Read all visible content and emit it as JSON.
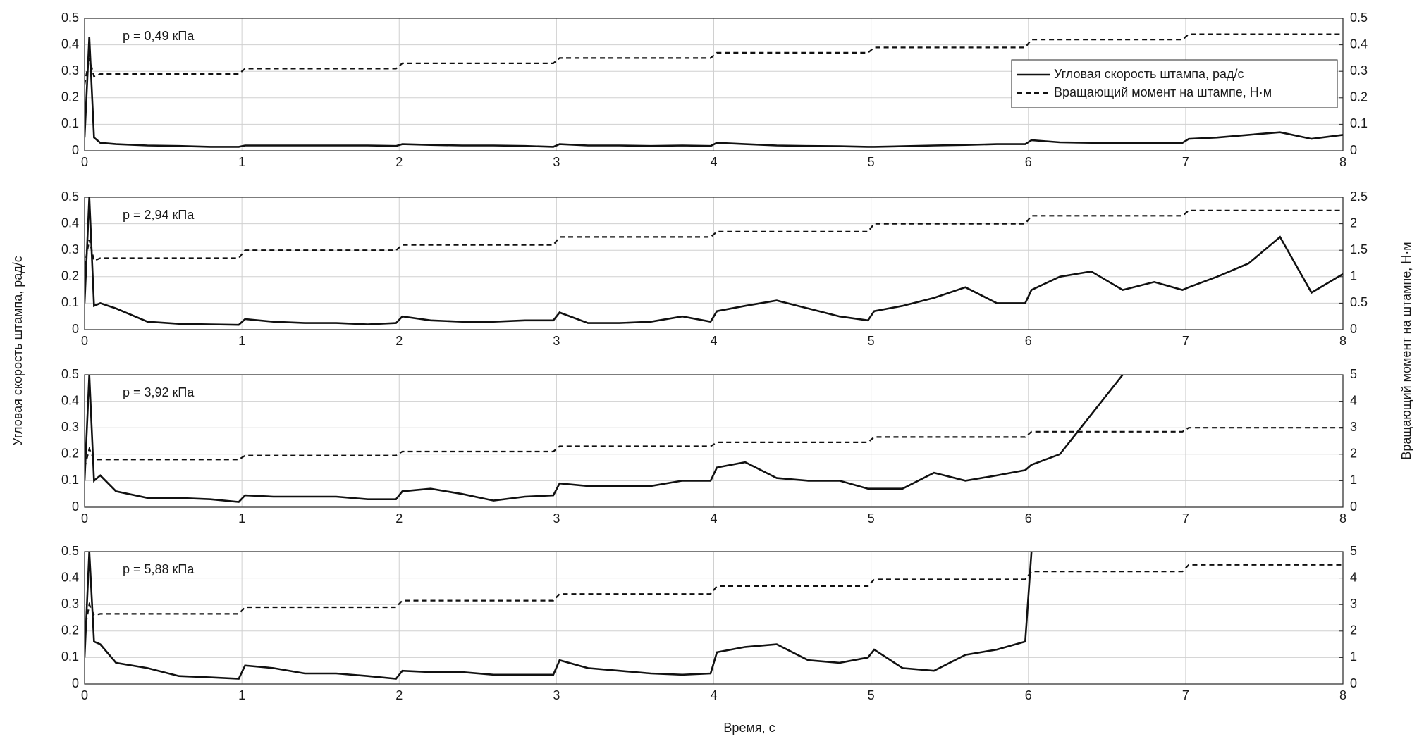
{
  "figure": {
    "xlabel": "Время, с",
    "ylabel": "Угловая скорость штампа, рад/с",
    "y2label": "Вращающий момент на штампе, Н·м"
  },
  "chart_data": [
    {
      "type": "line",
      "annotation": "p = 0,49 кПа",
      "grid": true,
      "legend": "upper right",
      "x": [
        0,
        0.03,
        0.06,
        0.1,
        0.2,
        0.4,
        0.6,
        0.8,
        0.98,
        1.02,
        1.2,
        1.4,
        1.6,
        1.8,
        1.98,
        2.02,
        2.2,
        2.4,
        2.6,
        2.8,
        2.98,
        3.02,
        3.2,
        3.4,
        3.6,
        3.8,
        3.98,
        4.02,
        4.2,
        4.4,
        4.6,
        4.8,
        4.98,
        5.02,
        5.2,
        5.4,
        5.6,
        5.8,
        5.98,
        6.02,
        6.2,
        6.4,
        6.6,
        6.8,
        6.98,
        7.02,
        7.2,
        7.4,
        7.6,
        7.8,
        8
      ],
      "xlim": [
        0,
        8
      ],
      "xticks": [
        0,
        1,
        2,
        3,
        4,
        5,
        6,
        7,
        8
      ],
      "ylim": [
        0,
        0.5
      ],
      "yticks": [
        0,
        0.1,
        0.2,
        0.3,
        0.4,
        0.5
      ],
      "y2lim": [
        0,
        0.5
      ],
      "y2ticks": [
        0,
        0.1,
        0.2,
        0.3,
        0.4,
        0.5
      ],
      "series": [
        {
          "name": "Угловая скорость штампа, рад/с",
          "color": "#111111",
          "linestyle": "solid",
          "values": [
            0.05,
            0.43,
            0.05,
            0.03,
            0.025,
            0.02,
            0.018,
            0.015,
            0.015,
            0.02,
            0.02,
            0.02,
            0.02,
            0.02,
            0.018,
            0.025,
            0.022,
            0.02,
            0.02,
            0.018,
            0.015,
            0.025,
            0.02,
            0.02,
            0.018,
            0.02,
            0.018,
            0.03,
            0.025,
            0.02,
            0.018,
            0.017,
            0.015,
            0.015,
            0.017,
            0.02,
            0.022,
            0.025,
            0.025,
            0.04,
            0.032,
            0.03,
            0.03,
            0.03,
            0.03,
            0.045,
            0.05,
            0.06,
            0.07,
            0.045,
            0.06
          ]
        },
        {
          "name": "Вращающий момент на штампе, Н·м",
          "color": "#111111",
          "linestyle": "dashed",
          "axis": "y2",
          "values": [
            0.25,
            0.35,
            0.28,
            0.29,
            0.29,
            0.29,
            0.29,
            0.29,
            0.29,
            0.31,
            0.31,
            0.31,
            0.31,
            0.31,
            0.31,
            0.33,
            0.33,
            0.33,
            0.33,
            0.33,
            0.33,
            0.35,
            0.35,
            0.35,
            0.35,
            0.35,
            0.35,
            0.37,
            0.37,
            0.37,
            0.37,
            0.37,
            0.37,
            0.39,
            0.39,
            0.39,
            0.39,
            0.39,
            0.39,
            0.42,
            0.42,
            0.42,
            0.42,
            0.42,
            0.42,
            0.44,
            0.44,
            0.44,
            0.44,
            0.44,
            0.44
          ]
        }
      ]
    },
    {
      "type": "line",
      "annotation": "p = 2,94 кПа",
      "grid": true,
      "x": [
        0,
        0.03,
        0.06,
        0.1,
        0.2,
        0.4,
        0.6,
        0.8,
        0.98,
        1.02,
        1.2,
        1.4,
        1.6,
        1.8,
        1.98,
        2.02,
        2.2,
        2.4,
        2.6,
        2.8,
        2.98,
        3.02,
        3.2,
        3.4,
        3.6,
        3.8,
        3.98,
        4.02,
        4.2,
        4.4,
        4.6,
        4.8,
        4.98,
        5.02,
        5.2,
        5.4,
        5.6,
        5.8,
        5.98,
        6.02,
        6.2,
        6.4,
        6.6,
        6.8,
        6.98,
        7.02,
        7.2,
        7.4,
        7.6,
        7.8,
        8
      ],
      "xlim": [
        0,
        8
      ],
      "xticks": [
        0,
        1,
        2,
        3,
        4,
        5,
        6,
        7,
        8
      ],
      "ylim": [
        0,
        0.5
      ],
      "yticks": [
        0,
        0.1,
        0.2,
        0.3,
        0.4,
        0.5
      ],
      "y2lim": [
        0,
        2.5
      ],
      "y2ticks": [
        0,
        0.5,
        1,
        1.5,
        2,
        2.5
      ],
      "series": [
        {
          "color": "#111111",
          "linestyle": "solid",
          "values": [
            0.1,
            0.5,
            0.09,
            0.1,
            0.08,
            0.03,
            0.022,
            0.02,
            0.018,
            0.04,
            0.03,
            0.025,
            0.025,
            0.02,
            0.025,
            0.05,
            0.035,
            0.03,
            0.03,
            0.035,
            0.035,
            0.065,
            0.025,
            0.025,
            0.03,
            0.05,
            0.03,
            0.07,
            0.09,
            0.11,
            0.08,
            0.05,
            0.035,
            0.07,
            0.09,
            0.12,
            0.16,
            0.1,
            0.1,
            0.15,
            0.2,
            0.22,
            0.15,
            0.18,
            0.15,
            0.16,
            0.2,
            0.25,
            0.35,
            0.14,
            0.21
          ]
        },
        {
          "color": "#111111",
          "linestyle": "dashed",
          "axis": "y2",
          "values": [
            1.2,
            1.7,
            1.3,
            1.35,
            1.35,
            1.35,
            1.35,
            1.35,
            1.35,
            1.5,
            1.5,
            1.5,
            1.5,
            1.5,
            1.5,
            1.6,
            1.6,
            1.6,
            1.6,
            1.6,
            1.6,
            1.75,
            1.75,
            1.75,
            1.75,
            1.75,
            1.75,
            1.85,
            1.85,
            1.85,
            1.85,
            1.85,
            1.85,
            2,
            2,
            2,
            2,
            2,
            2,
            2.15,
            2.15,
            2.15,
            2.15,
            2.15,
            2.15,
            2.25,
            2.25,
            2.25,
            2.25,
            2.25,
            2.25
          ]
        }
      ]
    },
    {
      "type": "line",
      "annotation": "p = 3,92 кПа",
      "grid": true,
      "x": [
        0,
        0.03,
        0.06,
        0.1,
        0.2,
        0.4,
        0.6,
        0.8,
        0.98,
        1.02,
        1.2,
        1.4,
        1.6,
        1.8,
        1.98,
        2.02,
        2.2,
        2.4,
        2.6,
        2.8,
        2.98,
        3.02,
        3.2,
        3.4,
        3.6,
        3.8,
        3.98,
        4.02,
        4.2,
        4.4,
        4.6,
        4.8,
        4.98,
        5.02,
        5.2,
        5.4,
        5.6,
        5.8,
        5.98,
        6.02,
        6.2,
        6.4,
        6.6,
        6.8,
        6.98,
        7.02,
        7.2,
        7.4,
        7.6,
        7.8,
        8
      ],
      "xlim": [
        0,
        8
      ],
      "xticks": [
        0,
        1,
        2,
        3,
        4,
        5,
        6,
        7,
        8
      ],
      "ylim": [
        0,
        0.5
      ],
      "yticks": [
        0,
        0.1,
        0.2,
        0.3,
        0.4,
        0.5
      ],
      "y2lim": [
        0,
        5
      ],
      "y2ticks": [
        0,
        1,
        2,
        3,
        4,
        5
      ],
      "series": [
        {
          "color": "#111111",
          "linestyle": "solid",
          "values": [
            0.1,
            0.5,
            0.1,
            0.12,
            0.06,
            0.035,
            0.035,
            0.03,
            0.02,
            0.045,
            0.04,
            0.04,
            0.04,
            0.03,
            0.03,
            0.06,
            0.07,
            0.05,
            0.025,
            0.04,
            0.045,
            0.09,
            0.08,
            0.08,
            0.08,
            0.1,
            0.1,
            0.15,
            0.17,
            0.11,
            0.1,
            0.1,
            0.07,
            0.07,
            0.07,
            0.13,
            0.1,
            0.12,
            0.14,
            0.16,
            0.2,
            0.35,
            0.5,
            null,
            null,
            null,
            null,
            null,
            null,
            null,
            null
          ]
        },
        {
          "color": "#111111",
          "linestyle": "dashed",
          "axis": "y2",
          "values": [
            1.5,
            2.2,
            1.8,
            1.8,
            1.8,
            1.8,
            1.8,
            1.8,
            1.8,
            1.95,
            1.95,
            1.95,
            1.95,
            1.95,
            1.95,
            2.1,
            2.1,
            2.1,
            2.1,
            2.1,
            2.1,
            2.3,
            2.3,
            2.3,
            2.3,
            2.3,
            2.3,
            2.45,
            2.45,
            2.45,
            2.45,
            2.45,
            2.45,
            2.65,
            2.65,
            2.65,
            2.65,
            2.65,
            2.65,
            2.85,
            2.85,
            2.85,
            2.85,
            2.85,
            2.85,
            3,
            3,
            3,
            3,
            3,
            3
          ]
        }
      ]
    },
    {
      "type": "line",
      "annotation": "p = 5,88 кПа",
      "grid": true,
      "x": [
        0,
        0.03,
        0.06,
        0.1,
        0.2,
        0.4,
        0.6,
        0.8,
        0.98,
        1.02,
        1.2,
        1.4,
        1.6,
        1.8,
        1.98,
        2.02,
        2.2,
        2.4,
        2.6,
        2.8,
        2.98,
        3.02,
        3.2,
        3.4,
        3.6,
        3.8,
        3.98,
        4.02,
        4.2,
        4.4,
        4.6,
        4.8,
        4.98,
        5.02,
        5.2,
        5.4,
        5.6,
        5.8,
        5.98,
        6.02,
        6.2,
        6.4,
        6.6,
        6.8,
        6.98,
        7.02,
        7.2,
        7.4,
        7.6,
        7.8,
        8
      ],
      "xlim": [
        0,
        8
      ],
      "xticks": [
        0,
        1,
        2,
        3,
        4,
        5,
        6,
        7,
        8
      ],
      "ylim": [
        0,
        0.5
      ],
      "yticks": [
        0,
        0.1,
        0.2,
        0.3,
        0.4,
        0.5
      ],
      "y2lim": [
        0,
        5
      ],
      "y2ticks": [
        0,
        1,
        2,
        3,
        4,
        5
      ],
      "series": [
        {
          "color": "#111111",
          "linestyle": "solid",
          "values": [
            0.1,
            0.5,
            0.16,
            0.15,
            0.08,
            0.06,
            0.03,
            0.025,
            0.02,
            0.07,
            0.06,
            0.04,
            0.04,
            0.03,
            0.02,
            0.05,
            0.045,
            0.045,
            0.035,
            0.035,
            0.035,
            0.09,
            0.06,
            0.05,
            0.04,
            0.035,
            0.04,
            0.12,
            0.14,
            0.15,
            0.09,
            0.08,
            0.1,
            0.13,
            0.06,
            0.05,
            0.11,
            0.13,
            0.16,
            0.5,
            null,
            null,
            null,
            null,
            null,
            null,
            null,
            null,
            null,
            null,
            null
          ]
        },
        {
          "color": "#111111",
          "linestyle": "dashed",
          "axis": "y2",
          "values": [
            2,
            3,
            2.6,
            2.65,
            2.65,
            2.65,
            2.65,
            2.65,
            2.65,
            2.9,
            2.9,
            2.9,
            2.9,
            2.9,
            2.9,
            3.15,
            3.15,
            3.15,
            3.15,
            3.15,
            3.15,
            3.4,
            3.4,
            3.4,
            3.4,
            3.4,
            3.4,
            3.7,
            3.7,
            3.7,
            3.7,
            3.7,
            3.7,
            3.95,
            3.95,
            3.95,
            3.95,
            3.95,
            3.95,
            4.25,
            4.25,
            4.25,
            4.25,
            4.25,
            4.25,
            4.5,
            4.5,
            4.5,
            4.5,
            4.5,
            4.5
          ]
        }
      ]
    }
  ]
}
